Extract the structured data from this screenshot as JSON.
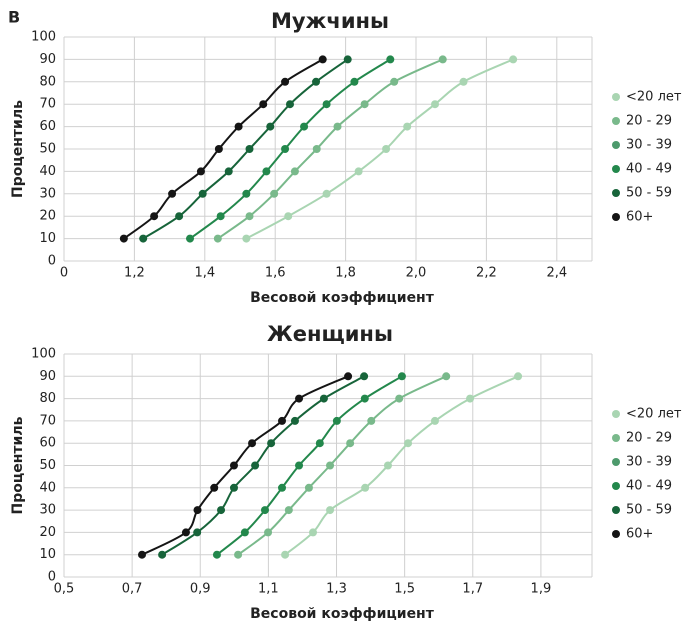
{
  "panel_label": "В",
  "chart_data": [
    {
      "type": "line",
      "title": "Мужчины",
      "x_label": "Весовой коэффициент",
      "y_label": "Процентиль",
      "xlim": [
        1.0,
        2.5
      ],
      "xticks": [
        {
          "value": 1.0,
          "label": "0"
        },
        {
          "value": 1.2,
          "label": "1,2"
        },
        {
          "value": 1.4,
          "label": "1,4"
        },
        {
          "value": 1.6,
          "label": "1,6"
        },
        {
          "value": 1.8,
          "label": "1,8"
        },
        {
          "value": 2.0,
          "label": "2,0"
        },
        {
          "value": 2.2,
          "label": "2,2"
        },
        {
          "value": 2.4,
          "label": "2,4"
        }
      ],
      "ylim": [
        0,
        100
      ],
      "yticks": [
        0,
        10,
        20,
        30,
        40,
        50,
        60,
        70,
        80,
        90,
        100
      ],
      "grid": true,
      "legend": "right",
      "series": [
        {
          "name": "<20 лет",
          "color": "#a9d5b2",
          "x": [
            1.518,
            1.637,
            1.746,
            1.837,
            1.915,
            1.975,
            2.054,
            2.135,
            2.276
          ],
          "values": [
            10,
            20,
            30,
            40,
            50,
            60,
            70,
            80,
            90
          ]
        },
        {
          "name": "20 - 29",
          "color": "#79b98b",
          "x": [
            1.437,
            1.527,
            1.597,
            1.656,
            1.718,
            1.777,
            1.854,
            1.938,
            2.076
          ],
          "values": [
            10,
            20,
            30,
            40,
            50,
            60,
            70,
            80,
            90
          ]
        },
        {
          "name": "30 - 39",
          "color": "#4d9a6c"
        },
        {
          "name": "40 - 49",
          "color": "#23884c",
          "x": [
            1.358,
            1.445,
            1.518,
            1.575,
            1.628,
            1.682,
            1.746,
            1.825,
            1.927
          ],
          "values": [
            10,
            20,
            30,
            40,
            50,
            60,
            70,
            80,
            90
          ]
        },
        {
          "name": "50 - 59",
          "color": "#17643a",
          "x": [
            1.225,
            1.327,
            1.394,
            1.468,
            1.527,
            1.586,
            1.642,
            1.716,
            1.806
          ],
          "values": [
            10,
            20,
            30,
            40,
            50,
            60,
            70,
            80,
            90
          ]
        },
        {
          "name": "60+",
          "color": "#151515",
          "x": [
            1.17,
            1.256,
            1.307,
            1.389,
            1.44,
            1.496,
            1.566,
            1.628,
            1.735
          ],
          "values": [
            10,
            20,
            30,
            40,
            50,
            60,
            70,
            80,
            90
          ]
        }
      ]
    },
    {
      "type": "line",
      "title": "Женщины",
      "x_label": "Весовой коэффициент",
      "y_label": "Процентиль",
      "xlim": [
        0.5,
        2.05
      ],
      "xticks": [
        {
          "value": 0.5,
          "label": "0,5"
        },
        {
          "value": 0.7,
          "label": "0,7"
        },
        {
          "value": 0.9,
          "label": "0,9"
        },
        {
          "value": 1.1,
          "label": "1,1"
        },
        {
          "value": 1.3,
          "label": "1,3"
        },
        {
          "value": 1.5,
          "label": "1,5"
        },
        {
          "value": 1.7,
          "label": "1,7"
        },
        {
          "value": 1.9,
          "label": "1,9"
        }
      ],
      "ylim": [
        0,
        100
      ],
      "yticks": [
        0,
        10,
        20,
        30,
        40,
        50,
        60,
        70,
        80,
        90,
        100
      ],
      "grid": true,
      "legend": "right",
      "series": [
        {
          "name": "<20 лет",
          "color": "#a9d5b2",
          "x": [
            1.149,
            1.231,
            1.281,
            1.384,
            1.451,
            1.51,
            1.589,
            1.692,
            1.833
          ],
          "values": [
            10,
            20,
            30,
            40,
            50,
            60,
            70,
            80,
            90
          ]
        },
        {
          "name": "20 - 29",
          "color": "#79b98b",
          "x": [
            1.011,
            1.099,
            1.16,
            1.219,
            1.281,
            1.34,
            1.402,
            1.484,
            1.622
          ],
          "values": [
            10,
            20,
            30,
            40,
            50,
            60,
            70,
            80,
            90
          ]
        },
        {
          "name": "30 - 39",
          "color": "#4d9a6c"
        },
        {
          "name": "40 - 49",
          "color": "#23884c",
          "x": [
            0.949,
            1.031,
            1.09,
            1.14,
            1.19,
            1.251,
            1.301,
            1.383,
            1.492
          ],
          "values": [
            10,
            20,
            30,
            40,
            50,
            60,
            70,
            80,
            90
          ]
        },
        {
          "name": "50 - 59",
          "color": "#17643a",
          "x": [
            0.788,
            0.891,
            0.961,
            0.999,
            1.061,
            1.108,
            1.178,
            1.263,
            1.381
          ],
          "values": [
            10,
            20,
            30,
            40,
            50,
            60,
            70,
            80,
            90
          ]
        },
        {
          "name": "60+",
          "color": "#151515",
          "x": [
            0.729,
            0.858,
            0.892,
            0.941,
            0.999,
            1.052,
            1.14,
            1.19,
            1.334
          ],
          "values": [
            10,
            20,
            30,
            40,
            50,
            60,
            70,
            80,
            90
          ]
        }
      ]
    }
  ]
}
